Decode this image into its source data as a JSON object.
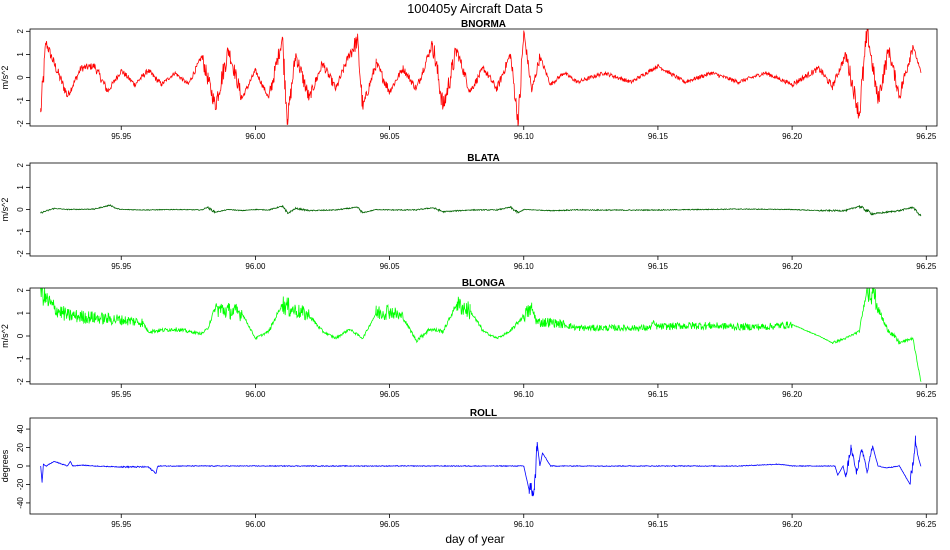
{
  "figure": {
    "title": "100405y   Aircraft Data 5",
    "xlabel": "day of year"
  },
  "chart_data": [
    {
      "type": "line",
      "title": "BNORMA",
      "ylabel": "m/s^2",
      "color": "#ff0000",
      "xlim": [
        95.916,
        96.254
      ],
      "ylim": [
        -2.1,
        2.1
      ],
      "xticks": [
        95.95,
        96.0,
        96.05,
        96.1,
        96.15,
        96.2,
        96.25
      ],
      "xtick_labels": [
        "95.95",
        "96.00",
        "96.05",
        "96.10",
        "96.15",
        "96.20",
        "96.25"
      ],
      "yticks": [
        -2,
        -1,
        0,
        1,
        2
      ],
      "ytick_labels": [
        "-2",
        "-1",
        "0",
        "1",
        "2"
      ],
      "series": [
        {
          "x": [
            95.92,
            95.922,
            95.925,
            95.93,
            95.935,
            95.94,
            95.945,
            95.95,
            95.955,
            95.96,
            95.965,
            95.97,
            95.975,
            95.98,
            95.985,
            95.99,
            95.995,
            96.0,
            96.005,
            96.01,
            96.012,
            96.015,
            96.02,
            96.025,
            96.03,
            96.035,
            96.038,
            96.04,
            96.045,
            96.05,
            96.055,
            96.06,
            96.066,
            96.07,
            96.075,
            96.08,
            96.085,
            96.09,
            96.095,
            96.098,
            96.1,
            96.103,
            96.106,
            96.11,
            96.115,
            96.12,
            96.13,
            96.14,
            96.15,
            96.16,
            96.17,
            96.18,
            96.19,
            96.2,
            96.21,
            96.215,
            96.22,
            96.225,
            96.228,
            96.232,
            96.236,
            96.24,
            96.245,
            96.248
          ],
          "y": [
            -1.5,
            1.5,
            0.6,
            -0.8,
            0.4,
            0.5,
            -0.6,
            0.3,
            -0.3,
            0.3,
            -0.3,
            0.2,
            -0.3,
            0.9,
            -1.2,
            1.2,
            -0.9,
            0.3,
            -0.9,
            1.7,
            -1.8,
            1.0,
            -0.9,
            0.6,
            -0.5,
            1.0,
            1.6,
            -1.3,
            0.6,
            -0.6,
            0.4,
            -0.5,
            1.5,
            -1.3,
            1.2,
            -0.6,
            0.4,
            -0.5,
            1.0,
            -2.0,
            2.0,
            -0.6,
            0.9,
            -0.3,
            0.2,
            -0.2,
            0.2,
            -0.2,
            0.5,
            -0.2,
            0.2,
            -0.2,
            0.2,
            -0.3,
            0.4,
            -0.4,
            1.0,
            -1.6,
            2.0,
            -1.0,
            1.2,
            -0.8,
            1.4,
            0.2
          ]
        }
      ]
    },
    {
      "type": "line",
      "title": "BLATA",
      "ylabel": "m/s^2",
      "color": "#006400",
      "xlim": [
        95.916,
        96.254
      ],
      "ylim": [
        -2.1,
        2.1
      ],
      "xticks": [
        95.95,
        96.0,
        96.05,
        96.1,
        96.15,
        96.2,
        96.25
      ],
      "xtick_labels": [
        "95.95",
        "96.00",
        "96.05",
        "96.10",
        "96.15",
        "96.20",
        "96.25"
      ],
      "yticks": [
        -2,
        -1,
        0,
        1,
        2
      ],
      "ytick_labels": [
        "-2",
        "-1",
        "0",
        "1",
        "2"
      ],
      "series": [
        {
          "x": [
            95.92,
            95.925,
            95.93,
            95.94,
            95.946,
            95.948,
            95.95,
            95.96,
            95.97,
            95.98,
            95.982,
            95.985,
            95.99,
            95.995,
            96.0,
            96.005,
            96.01,
            96.012,
            96.015,
            96.02,
            96.03,
            96.038,
            96.04,
            96.045,
            96.05,
            96.06,
            96.066,
            96.07,
            96.08,
            96.09,
            96.095,
            96.098,
            96.1,
            96.11,
            96.12,
            96.14,
            96.16,
            96.18,
            96.2,
            96.21,
            96.22,
            96.225,
            96.23,
            96.24,
            96.245,
            96.248
          ],
          "y": [
            -0.15,
            0.05,
            0.0,
            0.02,
            0.2,
            0.05,
            0.0,
            -0.02,
            0.0,
            -0.02,
            0.1,
            -0.12,
            0.0,
            -0.05,
            0.0,
            -0.02,
            0.15,
            -0.18,
            0.05,
            -0.05,
            -0.02,
            0.1,
            -0.15,
            0.0,
            -0.02,
            -0.02,
            0.08,
            -0.1,
            -0.02,
            -0.02,
            0.1,
            -0.15,
            0.0,
            -0.05,
            -0.02,
            -0.03,
            -0.01,
            0.02,
            0.0,
            -0.05,
            -0.05,
            0.15,
            -0.2,
            -0.05,
            0.1,
            -0.3
          ]
        }
      ]
    },
    {
      "type": "line",
      "title": "BLONGA",
      "ylabel": "m/s^2",
      "color": "#00ff00",
      "xlim": [
        95.916,
        96.254
      ],
      "ylim": [
        -2.1,
        2.1
      ],
      "xticks": [
        95.95,
        96.0,
        96.05,
        96.1,
        96.15,
        96.2,
        96.25
      ],
      "xtick_labels": [
        "95.95",
        "96.00",
        "96.05",
        "96.10",
        "96.15",
        "96.20",
        "96.25"
      ],
      "yticks": [
        -2,
        -1,
        0,
        1,
        2
      ],
      "ytick_labels": [
        "-2",
        "-1",
        "0",
        "1",
        "2"
      ],
      "series": [
        {
          "x": [
            95.92,
            95.922,
            95.925,
            95.93,
            95.94,
            95.95,
            95.958,
            95.96,
            95.97,
            95.975,
            95.98,
            95.982,
            95.985,
            95.99,
            95.995,
            96.0,
            96.005,
            96.01,
            96.013,
            96.02,
            96.025,
            96.03,
            96.035,
            96.04,
            96.045,
            96.05,
            96.055,
            96.06,
            96.065,
            96.07,
            96.075,
            96.08,
            96.085,
            96.09,
            96.095,
            96.1,
            96.103,
            96.105,
            96.11,
            96.115,
            96.12,
            96.14,
            96.147,
            96.148,
            96.15,
            96.16,
            96.17,
            96.18,
            96.19,
            96.2,
            96.21,
            96.215,
            96.22,
            96.225,
            96.228,
            96.23,
            96.232,
            96.235,
            96.24,
            96.245,
            96.248
          ],
          "y": [
            2.1,
            1.6,
            1.2,
            0.9,
            0.8,
            0.7,
            0.6,
            0.2,
            0.3,
            0.2,
            0.1,
            0.3,
            1.2,
            1.1,
            1.0,
            -0.1,
            0.2,
            1.4,
            1.2,
            0.9,
            0.2,
            -0.1,
            0.3,
            -0.1,
            1.0,
            1.1,
            0.8,
            -0.2,
            0.3,
            0.2,
            1.4,
            1.1,
            0.2,
            -0.1,
            0.2,
            0.9,
            1.2,
            0.6,
            0.6,
            0.5,
            0.35,
            0.35,
            0.35,
            0.55,
            0.4,
            0.45,
            0.45,
            0.4,
            0.4,
            0.5,
            0.0,
            -0.3,
            -0.1,
            0.2,
            2.1,
            2.1,
            1.2,
            0.4,
            -0.3,
            -0.1,
            -2.0
          ]
        }
      ]
    },
    {
      "type": "line",
      "title": "ROLL",
      "ylabel": "degrees",
      "color": "#0000ff",
      "xlim": [
        95.916,
        96.254
      ],
      "ylim": [
        -52,
        52
      ],
      "xticks": [
        95.95,
        96.0,
        96.05,
        96.1,
        96.15,
        96.2,
        96.25
      ],
      "xtick_labels": [
        "95.95",
        "96.00",
        "96.05",
        "96.10",
        "96.15",
        "96.20",
        "96.25"
      ],
      "yticks": [
        -40,
        -20,
        0,
        20,
        40
      ],
      "ytick_labels": [
        "-40",
        "-20",
        "0",
        "20",
        "40"
      ],
      "series": [
        {
          "x": [
            95.92,
            95.9205,
            95.921,
            95.922,
            95.925,
            95.93,
            95.931,
            95.932,
            95.935,
            95.94,
            95.95,
            95.96,
            95.963,
            95.9635,
            95.964,
            95.97,
            95.98,
            95.99,
            96.0,
            96.01,
            96.02,
            96.03,
            96.04,
            96.05,
            96.06,
            96.07,
            96.08,
            96.09,
            96.1,
            96.102,
            96.1025,
            96.104,
            96.105,
            96.106,
            96.107,
            96.11,
            96.12,
            96.14,
            96.16,
            96.18,
            96.195,
            96.2,
            96.21,
            96.216,
            96.217,
            96.219,
            96.22,
            96.222,
            96.224,
            96.226,
            96.228,
            96.23,
            96.232,
            96.235,
            96.24,
            96.244,
            96.246,
            96.247,
            96.248
          ],
          "y": [
            0,
            -18,
            2,
            0,
            5,
            0,
            5,
            0,
            1,
            0,
            -1,
            -1,
            -8,
            -1,
            0,
            0,
            0,
            0,
            0,
            0,
            0,
            0,
            0,
            0,
            0,
            0,
            0,
            0,
            0,
            -26,
            -26,
            -26,
            26,
            0,
            14,
            0,
            0,
            0,
            0,
            0,
            2,
            0,
            0,
            0,
            -10,
            0,
            -12,
            20,
            -8,
            18,
            -6,
            22,
            0,
            -2,
            0,
            -20,
            27,
            10,
            0
          ]
        }
      ]
    }
  ]
}
